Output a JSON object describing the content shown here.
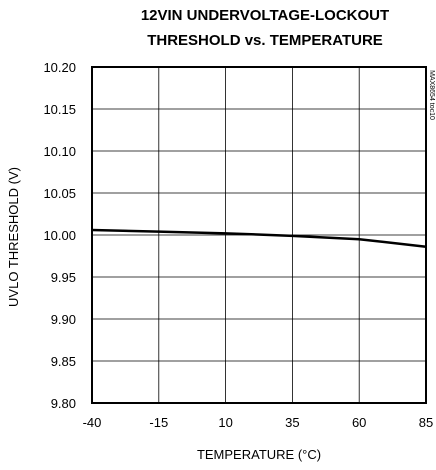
{
  "chart_data": {
    "type": "line",
    "title_lines": [
      "12VIN UNDERVOLTAGE-LOCKOUT",
      "THRESHOLD vs. TEMPERATURE"
    ],
    "xlabel": "TEMPERATURE (°C)",
    "ylabel": "UVLO THRESHOLD (V)",
    "xlim": [
      -40,
      85
    ],
    "ylim": [
      9.8,
      10.2
    ],
    "x_ticks": [
      -40,
      -15,
      10,
      35,
      60,
      85
    ],
    "x_tick_labels": [
      "-40",
      "-15",
      "10",
      "35",
      "60",
      "85"
    ],
    "y_ticks": [
      9.8,
      9.85,
      9.9,
      9.95,
      10.0,
      10.05,
      10.1,
      10.15,
      10.2
    ],
    "y_tick_labels": [
      "9.80",
      "9.85",
      "9.90",
      "9.95",
      "10.00",
      "10.05",
      "10.10",
      "10.15",
      "10.20"
    ],
    "grid": true,
    "series": [
      {
        "x": [
          -40,
          -15,
          10,
          35,
          60,
          85
        ],
        "y": [
          10.006,
          10.004,
          10.002,
          9.999,
          9.995,
          9.986
        ],
        "color": "#000000"
      }
    ],
    "watermark": "MAX8654 toc10"
  }
}
